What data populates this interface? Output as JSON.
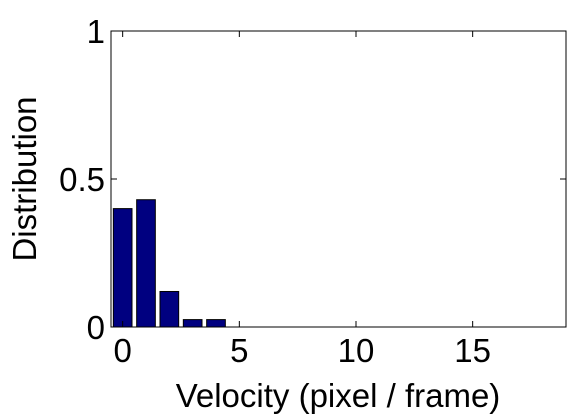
{
  "chart_data": {
    "type": "bar",
    "title": "",
    "xlabel": "Velocity (pixel / frame)",
    "ylabel": "Distribution",
    "x": [
      0,
      1,
      2,
      3,
      4
    ],
    "values": [
      0.4,
      0.43,
      0.12,
      0.025,
      0.025
    ],
    "xlim": [
      -0.5,
      19
    ],
    "ylim": [
      0,
      1
    ],
    "xticks": [
      0,
      5,
      10,
      15
    ],
    "yticks": [
      0,
      0.5,
      1
    ],
    "xtick_labels": [
      "0",
      "5",
      "10",
      "15"
    ],
    "ytick_labels": [
      "0",
      "0.5",
      "1"
    ],
    "grid": false,
    "legend": "none",
    "bar_color": "#000080",
    "bar_edge_color": "#000000"
  }
}
